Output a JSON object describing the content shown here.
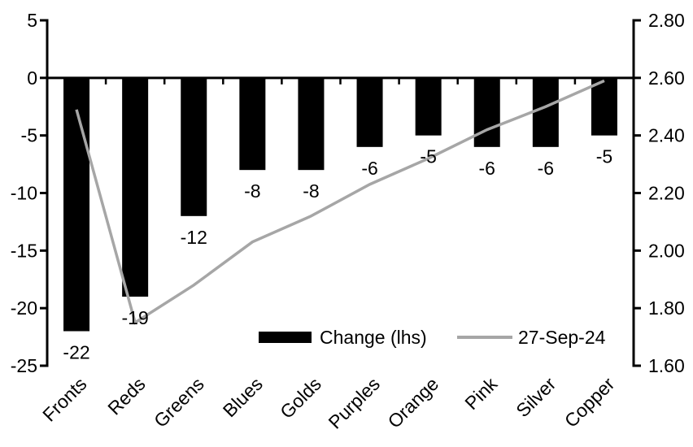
{
  "chart_data": {
    "type": "bar",
    "subtype": "bar-line-combo",
    "title": "",
    "xlabel": "",
    "ylabel": "",
    "grid": false,
    "legend_position": "bottom-center-inside",
    "categories": [
      "Fronts",
      "Reds",
      "Greens",
      "Blues",
      "Golds",
      "Purples",
      "Orange",
      "Pink",
      "Silver",
      "Copper"
    ],
    "series": [
      {
        "name": "Change (lhs)",
        "type": "bar",
        "axis": "lhs",
        "color": "#000000",
        "values": [
          -22,
          -19,
          -12,
          -8,
          -8,
          -6,
          -5,
          -6,
          -6,
          -5
        ],
        "labels": [
          "-22",
          "-19",
          "-12",
          "-8",
          "-8",
          "-6",
          "-5",
          "-6",
          "-6",
          "-5"
        ]
      },
      {
        "name": "27-Sep-24",
        "type": "line",
        "axis": "rhs",
        "color": "#a6a6a6",
        "values": [
          2.49,
          1.75,
          1.88,
          2.03,
          2.12,
          2.23,
          2.32,
          2.42,
          2.5,
          2.59
        ]
      }
    ],
    "lhs_axis": {
      "min": -25,
      "max": 5,
      "tick_values": [
        5,
        0,
        -5,
        -10,
        -15,
        -20,
        -25
      ],
      "tick_labels": [
        "5",
        "0",
        "-5",
        "-10",
        "-15",
        "-20",
        "-25"
      ]
    },
    "rhs_axis": {
      "min": 1.6,
      "max": 2.8,
      "tick_values": [
        2.8,
        2.6,
        2.4,
        2.2,
        2.0,
        1.8,
        1.6
      ],
      "tick_labels": [
        "2.80",
        "2.60",
        "2.40",
        "2.20",
        "2.00",
        "1.80",
        "1.60"
      ]
    },
    "axis_color": "#000000",
    "text_color": "#000000"
  }
}
